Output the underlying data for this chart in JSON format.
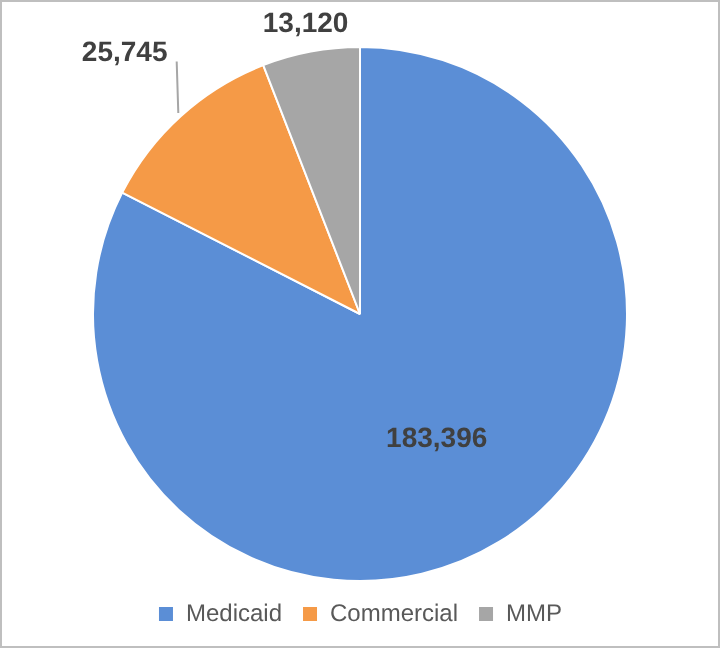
{
  "chart_data": {
    "type": "pie",
    "categories": [
      "Medicaid",
      "Commercial",
      "MMP"
    ],
    "values": [
      183396,
      25745,
      13120
    ],
    "colors": [
      "#5b8ed6",
      "#f59a47",
      "#a6a6a6"
    ],
    "value_labels": [
      "183,396",
      "25,745",
      "13,120"
    ],
    "legend": "bottom"
  }
}
